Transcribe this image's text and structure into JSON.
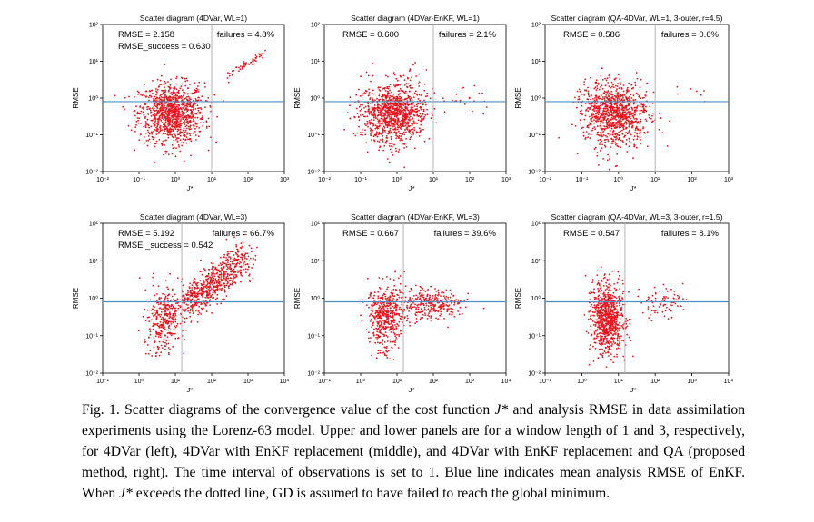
{
  "figure": {
    "panels": [
      {
        "title": "Scatter diagram (4DVar, WL=1)",
        "rmse_text": "RMSE = 2.158",
        "rmse_success_text": "RMSE_success = 0.630",
        "failures_text": "failures = 4.8%"
      },
      {
        "title": "Scatter diagram (4DVar-EnKF, WL=1)",
        "rmse_text": "RMSE = 0.600",
        "rmse_success_text": "",
        "failures_text": "failures = 2.1%"
      },
      {
        "title": "Scatter diagram (QA-4DVar, WL=1, 3-outer, r=4.5)",
        "rmse_text": "RMSE = 0.586",
        "rmse_success_text": "",
        "failures_text": "failures = 0.6%"
      },
      {
        "title": "Scatter diagram (4DVar, WL=3)",
        "rmse_text": "RMSE = 5.192",
        "rmse_success_text": "RMSE _success = 0.542",
        "failures_text": "failures = 66.7%"
      },
      {
        "title": "Scatter diagram (4DVar-EnKF, WL=3)",
        "rmse_text": "RMSE = 0.667",
        "rmse_success_text": "",
        "failures_text": "failures = 39.6%"
      },
      {
        "title": "Scatter diagram (QA-4DVar, WL=3, 3-outer, r=1.5)",
        "rmse_text": "RMSE = 0.547",
        "rmse_success_text": "",
        "failures_text": "failures = 8.1%"
      }
    ]
  },
  "caption": {
    "part1": "Fig. 1.   Scatter diagrams of the convergence value of the cost function ",
    "part2": " and analysis RMSE in data assimilation experiments using the Lorenz-63 model. Upper and lower panels are for a window length of 1 and 3, respectively, for 4DVar (left), 4DVar with EnKF replacement (middle), and 4DVar with EnKF replacement and QA (proposed method, right). The time interval of observations is set to 1. Blue line indicates mean analysis RMSE of EnKF. When ",
    "part3": " exceeds the dotted line, GD is assumed to have failed to reach the global minimum.",
    "jstar": "J*"
  },
  "colors": {
    "points": "#e8141c",
    "mean_line": "#4a90c8",
    "threshold_line": "#b4b4b4"
  },
  "chart_data": [
    {
      "type": "scatter",
      "title": "Scatter diagram (4DVar, WL=1)",
      "xlabel": "J*",
      "ylabel": "RMSE",
      "xscale": "log",
      "yscale": "log",
      "xlim": [
        0.01,
        1000
      ],
      "ylim": [
        0.01,
        100
      ],
      "xticks": [
        "10⁻²",
        "10⁻¹",
        "10⁰",
        "10¹",
        "10²",
        "10³"
      ],
      "yticks": [
        "10⁻²",
        "10⁻¹",
        "10⁰",
        "10¹",
        "10²"
      ],
      "enkf_mean_rmse": 0.8,
      "failure_threshold_j": 10,
      "annotations": {
        "rmse": 2.158,
        "rmse_success": 0.63,
        "failures_percent": 4.8
      },
      "clusters": [
        {
          "x_center": 0.8,
          "x_spread_log": 0.45,
          "y_center": 0.4,
          "y_spread_log": 0.4,
          "n": 1000
        },
        {
          "x_center": 0.8,
          "x_spread_log": 0.3,
          "y_center": 0.08,
          "y_spread_log": 0.4,
          "n": 40
        }
      ],
      "failed_trend": {
        "x_from": 30,
        "x_to": 300,
        "y_from": 4,
        "y_to": 18,
        "n": 55
      }
    },
    {
      "type": "scatter",
      "title": "Scatter diagram (4DVar-EnKF, WL=1)",
      "xlabel": "J*",
      "ylabel": "RMSE",
      "xscale": "log",
      "yscale": "log",
      "xlim": [
        0.01,
        1000
      ],
      "ylim": [
        0.01,
        100
      ],
      "xticks": [
        "10⁻²",
        "10⁻¹",
        "10⁰",
        "10¹",
        "10²",
        "10³"
      ],
      "yticks": [
        "10⁻²",
        "10⁻¹",
        "10⁰",
        "10¹",
        "10²"
      ],
      "enkf_mean_rmse": 0.8,
      "failure_threshold_j": 10,
      "annotations": {
        "rmse": 0.6,
        "failures_percent": 2.1
      },
      "clusters": [
        {
          "x_center": 0.8,
          "x_spread_log": 0.45,
          "y_center": 0.4,
          "y_spread_log": 0.4,
          "n": 1000
        },
        {
          "x_center": 0.8,
          "x_spread_log": 0.3,
          "y_center": 0.08,
          "y_spread_log": 0.4,
          "n": 40
        },
        {
          "x_center": 80,
          "x_spread_log": 0.35,
          "y_center": 1.0,
          "y_spread_log": 0.2,
          "n": 20
        }
      ]
    },
    {
      "type": "scatter",
      "title": "Scatter diagram (QA-4DVar, WL=1, 3-outer, r=4.5)",
      "xlabel": "J*",
      "ylabel": "RMSE",
      "xscale": "log",
      "yscale": "log",
      "xlim": [
        0.01,
        1000
      ],
      "ylim": [
        0.01,
        100
      ],
      "xticks": [
        "10⁻²",
        "10⁻¹",
        "10⁰",
        "10¹",
        "10²",
        "10³"
      ],
      "yticks": [
        "10⁻²",
        "10⁻¹",
        "10⁰",
        "10¹",
        "10²"
      ],
      "enkf_mean_rmse": 0.8,
      "failure_threshold_j": 10,
      "annotations": {
        "rmse": 0.586,
        "failures_percent": 0.6
      },
      "clusters": [
        {
          "x_center": 0.8,
          "x_spread_log": 0.45,
          "y_center": 0.4,
          "y_spread_log": 0.4,
          "n": 1000
        },
        {
          "x_center": 0.8,
          "x_spread_log": 0.3,
          "y_center": 0.08,
          "y_spread_log": 0.4,
          "n": 40
        },
        {
          "x_center": 150,
          "x_spread_log": 0.3,
          "y_center": 1.2,
          "y_spread_log": 0.15,
          "n": 6
        }
      ]
    },
    {
      "type": "scatter",
      "title": "Scatter diagram (4DVar, WL=3)",
      "xlabel": "J*",
      "ylabel": "RMSE",
      "xscale": "log",
      "yscale": "log",
      "xlim": [
        0.1,
        10000
      ],
      "ylim": [
        0.01,
        100
      ],
      "xticks": [
        "10⁻¹",
        "10⁰",
        "10¹",
        "10²",
        "10³",
        "10⁴"
      ],
      "yticks": [
        "10⁻²",
        "10⁻¹",
        "10⁰",
        "10¹",
        "10²"
      ],
      "enkf_mean_rmse": 0.8,
      "failure_threshold_j": 15,
      "annotations": {
        "rmse": 5.192,
        "rmse_success": 0.542,
        "failures_percent": 66.7
      },
      "clusters": [
        {
          "x_center": 5,
          "x_spread_log": 0.25,
          "y_center": 0.35,
          "y_spread_log": 0.4,
          "n": 300
        },
        {
          "x_center": 3,
          "x_spread_log": 0.2,
          "y_center": 0.08,
          "y_spread_log": 0.3,
          "n": 40
        }
      ],
      "failed_trend": {
        "x_from": 20,
        "x_to": 900,
        "y_from": 0.7,
        "y_to": 12,
        "n": 650,
        "y_spread_log": 0.25
      }
    },
    {
      "type": "scatter",
      "title": "Scatter diagram (4DVar-EnKF, WL=3)",
      "xlabel": "J*",
      "ylabel": "RMSE",
      "xscale": "log",
      "yscale": "log",
      "xlim": [
        0.1,
        10000
      ],
      "ylim": [
        0.01,
        100
      ],
      "xticks": [
        "10⁻¹",
        "10⁰",
        "10¹",
        "10²",
        "10³",
        "10⁴"
      ],
      "yticks": [
        "10⁻²",
        "10⁻¹",
        "10⁰",
        "10¹",
        "10²"
      ],
      "enkf_mean_rmse": 0.8,
      "failure_threshold_j": 15,
      "annotations": {
        "rmse": 0.667,
        "failures_percent": 39.6
      },
      "clusters": [
        {
          "x_center": 5,
          "x_spread_log": 0.25,
          "y_center": 0.35,
          "y_spread_log": 0.4,
          "n": 450
        },
        {
          "x_center": 80,
          "x_spread_log": 0.45,
          "y_center": 0.7,
          "y_spread_log": 0.2,
          "n": 320
        },
        {
          "x_center": 5,
          "x_spread_log": 0.15,
          "y_center": 0.04,
          "y_spread_log": 0.2,
          "n": 20
        }
      ]
    },
    {
      "type": "scatter",
      "title": "Scatter diagram (QA-4DVar, WL=3, 3-outer, r=1.5)",
      "xlabel": "J*",
      "ylabel": "RMSE",
      "xscale": "log",
      "yscale": "log",
      "xlim": [
        0.1,
        10000
      ],
      "ylim": [
        0.01,
        100
      ],
      "xticks": [
        "10⁻¹",
        "10⁰",
        "10¹",
        "10²",
        "10³",
        "10⁴"
      ],
      "yticks": [
        "10⁻²",
        "10⁻¹",
        "10⁰",
        "10¹",
        "10²"
      ],
      "enkf_mean_rmse": 0.8,
      "failure_threshold_j": 15,
      "annotations": {
        "rmse": 0.547,
        "failures_percent": 8.1
      },
      "clusters": [
        {
          "x_center": 5,
          "x_spread_log": 0.22,
          "y_center": 0.3,
          "y_spread_log": 0.45,
          "n": 850
        },
        {
          "x_center": 150,
          "x_spread_log": 0.3,
          "y_center": 0.8,
          "y_spread_log": 0.2,
          "n": 75
        }
      ]
    }
  ]
}
